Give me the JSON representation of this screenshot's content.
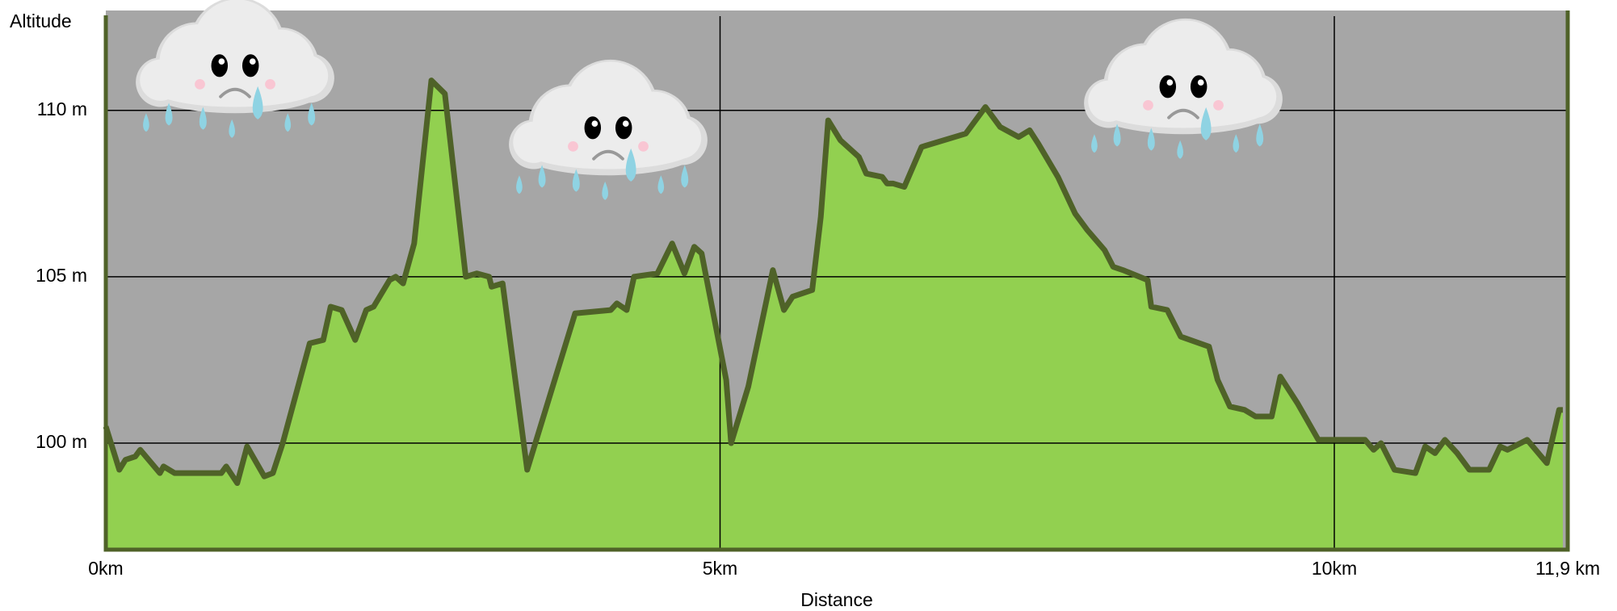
{
  "chart_data": {
    "type": "area",
    "ylabel": "Altitude",
    "xlabel": "Distance",
    "color": "#92d050",
    "line_color": "#4f6228",
    "background": "#a6a6a6",
    "grid": true,
    "xlim": [
      0,
      11.9
    ],
    "ylim": [
      96.8,
      113
    ],
    "xticks": [
      {
        "value": 0,
        "label": "0km"
      },
      {
        "value": 5,
        "label": "5km"
      },
      {
        "value": 10,
        "label": "10km"
      },
      {
        "value": 11.9,
        "label": "11,9 km"
      }
    ],
    "yticks": [
      {
        "value": 100,
        "label": "100 m"
      },
      {
        "value": 105,
        "label": "105 m"
      },
      {
        "value": 110,
        "label": "110 m"
      }
    ],
    "x": [
      0,
      0.11,
      0.16,
      0.24,
      0.28,
      0.44,
      0.47,
      0.56,
      0.94,
      0.98,
      1.07,
      1.15,
      1.29,
      1.36,
      1.44,
      1.66,
      1.77,
      1.83,
      1.92,
      2.03,
      2.12,
      2.18,
      2.31,
      2.36,
      2.42,
      2.51,
      2.65,
      2.76,
      2.93,
      3.02,
      3.12,
      3.14,
      3.23,
      3.43,
      3.82,
      4.11,
      4.16,
      4.24,
      4.3,
      4.49,
      4.61,
      4.71,
      4.79,
      4.85,
      5.05,
      5.09,
      5.23,
      5.43,
      5.52,
      5.59,
      5.75,
      5.82,
      5.88,
      5.98,
      6.13,
      6.19,
      6.32,
      6.36,
      6.41,
      6.5,
      6.64,
      7.0,
      7.16,
      7.28,
      7.43,
      7.52,
      7.59,
      7.75,
      7.89,
      7.99,
      8.13,
      8.2,
      8.28,
      8.48,
      8.51,
      8.64,
      8.75,
      8.98,
      9.05,
      9.15,
      9.27,
      9.36,
      9.49,
      9.56,
      9.7,
      9.87,
      10.25,
      10.32,
      10.38,
      10.49,
      10.66,
      10.74,
      10.82,
      10.9,
      11.0,
      11.1,
      11.26,
      11.35,
      11.41,
      11.57,
      11.73,
      11.83,
      11.86
    ],
    "values": [
      100.5,
      99.2,
      99.5,
      99.6,
      99.8,
      99.1,
      99.3,
      99.1,
      99.1,
      99.3,
      98.8,
      99.9,
      99.0,
      99.1,
      100.0,
      103.0,
      103.1,
      104.1,
      104.0,
      103.1,
      104.0,
      104.1,
      104.9,
      105.0,
      104.8,
      106.0,
      110.9,
      110.5,
      105.0,
      105.1,
      105.0,
      104.7,
      104.8,
      99.2,
      103.9,
      104.0,
      104.2,
      104.0,
      105.0,
      105.1,
      106.0,
      105.1,
      105.9,
      105.7,
      101.9,
      100.0,
      101.7,
      105.2,
      104.0,
      104.4,
      104.6,
      106.8,
      109.7,
      109.1,
      108.6,
      108.1,
      108.0,
      107.8,
      107.8,
      107.7,
      108.9,
      109.3,
      110.1,
      109.5,
      109.2,
      109.4,
      109.0,
      108.0,
      106.9,
      106.4,
      105.8,
      105.3,
      105.2,
      104.9,
      104.1,
      104.0,
      103.2,
      102.9,
      101.9,
      101.1,
      101.0,
      100.8,
      100.8,
      102.0,
      101.2,
      100.1,
      100.1,
      99.8,
      100.0,
      99.2,
      99.1,
      99.9,
      99.7,
      100.1,
      99.7,
      99.2,
      99.2,
      99.9,
      99.8,
      100.1,
      99.4,
      101.0,
      101.0
    ]
  }
}
